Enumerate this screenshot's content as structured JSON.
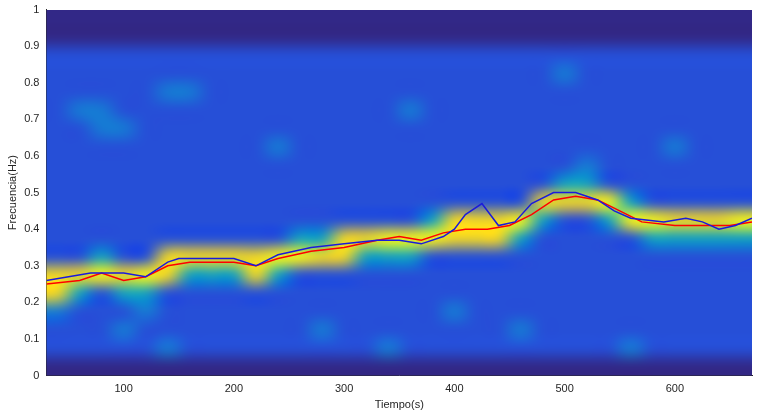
{
  "chart_data": {
    "type": "heatmap",
    "x_label": "Tiempo(s)",
    "y_label": "Frecuencia(Hz)",
    "xlim": [
      30,
      670
    ],
    "xticks": [
      100,
      200,
      300,
      400,
      500,
      600
    ],
    "ylim": [
      0,
      1
    ],
    "yticks": [
      0,
      0.1,
      0.2,
      0.3,
      0.4,
      0.5,
      0.6,
      0.7,
      0.8,
      0.9,
      1
    ],
    "grid": false,
    "heatmap": {
      "x": [
        40,
        60,
        80,
        100,
        120,
        140,
        160,
        180,
        200,
        220,
        240,
        260,
        280,
        300,
        320,
        340,
        360,
        380,
        400,
        420,
        440,
        460,
        480,
        500,
        520,
        540,
        560,
        580,
        600,
        620,
        640,
        660
      ],
      "y": [
        0.025,
        0.075,
        0.125,
        0.175,
        0.225,
        0.275,
        0.325,
        0.375,
        0.425,
        0.475,
        0.525,
        0.575,
        0.625,
        0.675,
        0.725,
        0.775,
        0.825,
        0.875,
        0.925,
        0.975
      ],
      "color_range": [
        0,
        9
      ],
      "cells": [
        [
          0,
          0,
          0,
          0,
          0,
          0,
          0,
          0,
          0,
          0,
          0,
          0,
          0,
          0,
          0,
          0,
          0,
          0,
          0,
          0,
          0,
          0,
          0,
          0,
          0,
          0,
          0,
          0,
          0,
          0,
          0,
          0
        ],
        [
          2,
          2,
          2,
          2,
          2,
          3,
          2,
          2,
          2,
          2,
          2,
          2,
          2,
          2,
          2,
          3,
          2,
          2,
          2,
          2,
          2,
          2,
          2,
          2,
          2,
          2,
          3,
          2,
          2,
          2,
          2,
          2
        ],
        [
          2,
          2,
          2,
          3,
          2,
          2,
          2,
          2,
          2,
          2,
          2,
          2,
          3,
          2,
          2,
          2,
          2,
          2,
          2,
          2,
          2,
          3,
          2,
          2,
          2,
          2,
          2,
          2,
          2,
          2,
          2,
          2
        ],
        [
          3,
          2,
          2,
          2,
          3,
          2,
          2,
          2,
          2,
          2,
          2,
          2,
          2,
          2,
          2,
          2,
          2,
          2,
          3,
          2,
          2,
          2,
          2,
          2,
          2,
          2,
          2,
          2,
          2,
          2,
          2,
          2
        ],
        [
          8,
          4,
          2,
          4,
          4,
          2,
          2,
          2,
          2,
          2,
          2,
          2,
          2,
          2,
          2,
          2,
          2,
          2,
          2,
          2,
          2,
          2,
          2,
          2,
          2,
          2,
          2,
          2,
          2,
          2,
          2,
          2
        ],
        [
          8,
          8,
          9,
          8,
          9,
          8,
          4,
          4,
          4,
          8,
          4,
          2,
          2,
          2,
          2,
          2,
          2,
          2,
          2,
          2,
          2,
          2,
          2,
          2,
          2,
          2,
          2,
          2,
          2,
          2,
          2,
          2
        ],
        [
          2,
          2,
          4,
          2,
          2,
          8,
          8,
          8,
          8,
          8,
          9,
          9,
          8,
          8,
          4,
          4,
          4,
          2,
          2,
          2,
          2,
          2,
          2,
          2,
          2,
          2,
          2,
          2,
          2,
          2,
          2,
          2
        ],
        [
          2,
          2,
          2,
          2,
          2,
          2,
          2,
          2,
          2,
          2,
          2,
          4,
          4,
          8,
          8,
          9,
          9,
          9,
          8,
          8,
          8,
          4,
          2,
          2,
          2,
          2,
          2,
          4,
          4,
          4,
          4,
          4
        ],
        [
          2,
          2,
          2,
          2,
          2,
          2,
          2,
          2,
          2,
          2,
          2,
          2,
          2,
          2,
          2,
          2,
          2,
          4,
          8,
          8,
          8,
          9,
          4,
          2,
          2,
          4,
          9,
          9,
          8,
          8,
          8,
          9
        ],
        [
          2,
          2,
          2,
          2,
          2,
          2,
          2,
          2,
          2,
          2,
          2,
          2,
          2,
          2,
          2,
          2,
          2,
          2,
          2,
          2,
          2,
          2,
          8,
          8,
          8,
          9,
          4,
          2,
          2,
          2,
          2,
          2
        ],
        [
          2,
          2,
          2,
          2,
          2,
          2,
          2,
          2,
          2,
          2,
          2,
          2,
          2,
          2,
          2,
          2,
          2,
          2,
          2,
          2,
          2,
          2,
          2,
          4,
          4,
          2,
          2,
          2,
          2,
          2,
          2,
          2
        ],
        [
          2,
          2,
          2,
          2,
          2,
          2,
          2,
          2,
          2,
          2,
          2,
          2,
          2,
          2,
          2,
          2,
          2,
          2,
          2,
          2,
          2,
          2,
          2,
          2,
          3,
          2,
          2,
          2,
          2,
          2,
          2,
          2
        ],
        [
          2,
          2,
          2,
          2,
          2,
          2,
          2,
          2,
          2,
          2,
          3,
          2,
          2,
          2,
          2,
          2,
          2,
          2,
          2,
          2,
          2,
          2,
          2,
          2,
          2,
          2,
          2,
          2,
          3,
          2,
          2,
          2
        ],
        [
          2,
          2,
          3,
          3,
          2,
          2,
          2,
          2,
          2,
          2,
          2,
          2,
          2,
          2,
          2,
          2,
          2,
          2,
          2,
          2,
          2,
          2,
          2,
          2,
          2,
          2,
          2,
          2,
          2,
          2,
          2,
          2
        ],
        [
          2,
          3,
          3,
          2,
          2,
          2,
          2,
          2,
          2,
          2,
          2,
          2,
          2,
          2,
          2,
          2,
          3,
          2,
          2,
          2,
          2,
          2,
          2,
          2,
          2,
          2,
          2,
          2,
          2,
          2,
          2,
          2
        ],
        [
          2,
          2,
          2,
          2,
          2,
          3,
          3,
          2,
          2,
          2,
          2,
          2,
          2,
          2,
          2,
          2,
          2,
          2,
          2,
          2,
          2,
          2,
          2,
          2,
          2,
          2,
          2,
          2,
          2,
          2,
          2,
          2
        ],
        [
          2,
          2,
          2,
          2,
          2,
          2,
          2,
          2,
          2,
          2,
          2,
          2,
          2,
          2,
          2,
          2,
          2,
          2,
          2,
          2,
          2,
          2,
          2,
          3,
          2,
          2,
          2,
          2,
          2,
          2,
          2,
          2
        ],
        [
          2,
          2,
          2,
          2,
          2,
          2,
          2,
          2,
          2,
          2,
          2,
          2,
          2,
          2,
          2,
          2,
          2,
          2,
          2,
          2,
          2,
          2,
          2,
          2,
          2,
          2,
          2,
          2,
          2,
          2,
          2,
          2
        ],
        [
          0,
          0,
          0,
          0,
          0,
          0,
          0,
          0,
          0,
          0,
          0,
          0,
          0,
          0,
          0,
          0,
          0,
          0,
          0,
          0,
          0,
          0,
          0,
          0,
          0,
          0,
          0,
          0,
          0,
          0,
          0,
          0
        ],
        [
          0,
          0,
          0,
          0,
          0,
          0,
          0,
          0,
          0,
          0,
          0,
          0,
          0,
          0,
          0,
          0,
          0,
          0,
          0,
          0,
          0,
          0,
          0,
          0,
          0,
          0,
          0,
          0,
          0,
          0,
          0,
          0
        ]
      ]
    },
    "series": [
      {
        "type": "line",
        "color": "#1a1adc",
        "x": [
          30,
          50,
          70,
          90,
          100,
          120,
          140,
          150,
          170,
          200,
          220,
          240,
          270,
          300,
          330,
          350,
          370,
          390,
          400,
          410,
          425,
          440,
          455,
          470,
          490,
          510,
          530,
          545,
          560,
          590,
          610,
          625,
          640,
          655,
          670
        ],
        "values": [
          0.26,
          0.27,
          0.28,
          0.28,
          0.28,
          0.27,
          0.31,
          0.32,
          0.32,
          0.32,
          0.3,
          0.33,
          0.35,
          0.36,
          0.37,
          0.37,
          0.36,
          0.38,
          0.4,
          0.44,
          0.47,
          0.41,
          0.42,
          0.47,
          0.5,
          0.5,
          0.48,
          0.45,
          0.43,
          0.42,
          0.43,
          0.42,
          0.4,
          0.41,
          0.43
        ]
      },
      {
        "type": "line",
        "color": "#ff0000",
        "x": [
          30,
          60,
          80,
          100,
          120,
          140,
          160,
          200,
          220,
          240,
          270,
          300,
          330,
          350,
          370,
          390,
          410,
          430,
          450,
          470,
          490,
          510,
          530,
          550,
          570,
          600,
          630,
          650,
          670
        ],
        "values": [
          0.25,
          0.26,
          0.28,
          0.26,
          0.27,
          0.3,
          0.31,
          0.31,
          0.3,
          0.32,
          0.34,
          0.35,
          0.37,
          0.38,
          0.37,
          0.39,
          0.4,
          0.4,
          0.41,
          0.44,
          0.48,
          0.49,
          0.48,
          0.45,
          0.42,
          0.41,
          0.41,
          0.41,
          0.42
        ]
      }
    ]
  }
}
